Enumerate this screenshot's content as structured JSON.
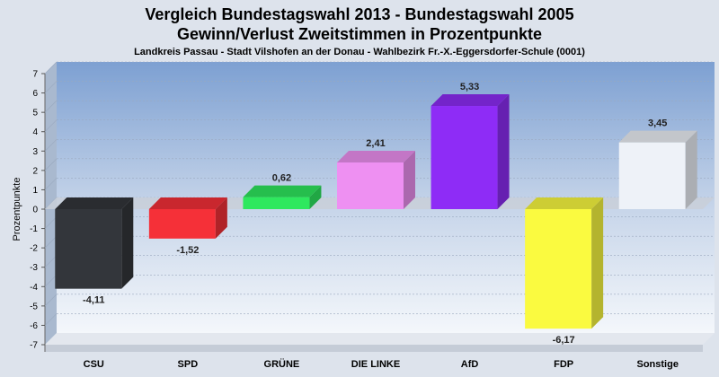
{
  "title": "Vergleich Bundestagswahl 2013 - Bundestagswahl 2005",
  "subtitle": "Gewinn/Verlust Zweitstimmen in Prozentpunkte",
  "subsubtitle": "Landkreis Passau - Stadt Vilshofen an der Donau - Wahlbezirk Fr.-X.-Eggersdorfer-Schule (0001)",
  "chart_data": {
    "type": "bar",
    "title": "Vergleich Bundestagswahl 2013 - Bundestagswahl 2005",
    "ylabel": "Prozentpunkte",
    "xlabel": "",
    "ylim": [
      -7,
      7
    ],
    "yticks": [
      7,
      6,
      5,
      4,
      3,
      2,
      1,
      0,
      -1,
      -2,
      -3,
      -4,
      -5,
      -6,
      -7
    ],
    "grid": true,
    "categories": [
      "CSU",
      "SPD",
      "GRÜNE",
      "DIE LINKE",
      "AfD",
      "FDP",
      "Sonstige"
    ],
    "values": [
      -4.11,
      -1.52,
      0.62,
      2.41,
      5.33,
      -6.17,
      3.45
    ],
    "value_labels": [
      "-4,11",
      "-1,52",
      "0,62",
      "2,41",
      "5,33",
      "-6,17",
      "3,45"
    ],
    "colors": [
      "#33363b",
      "#f53038",
      "#2ee85e",
      "#ee90f2",
      "#8e2cf6",
      "#fafa40",
      "#eef2f8"
    ]
  }
}
